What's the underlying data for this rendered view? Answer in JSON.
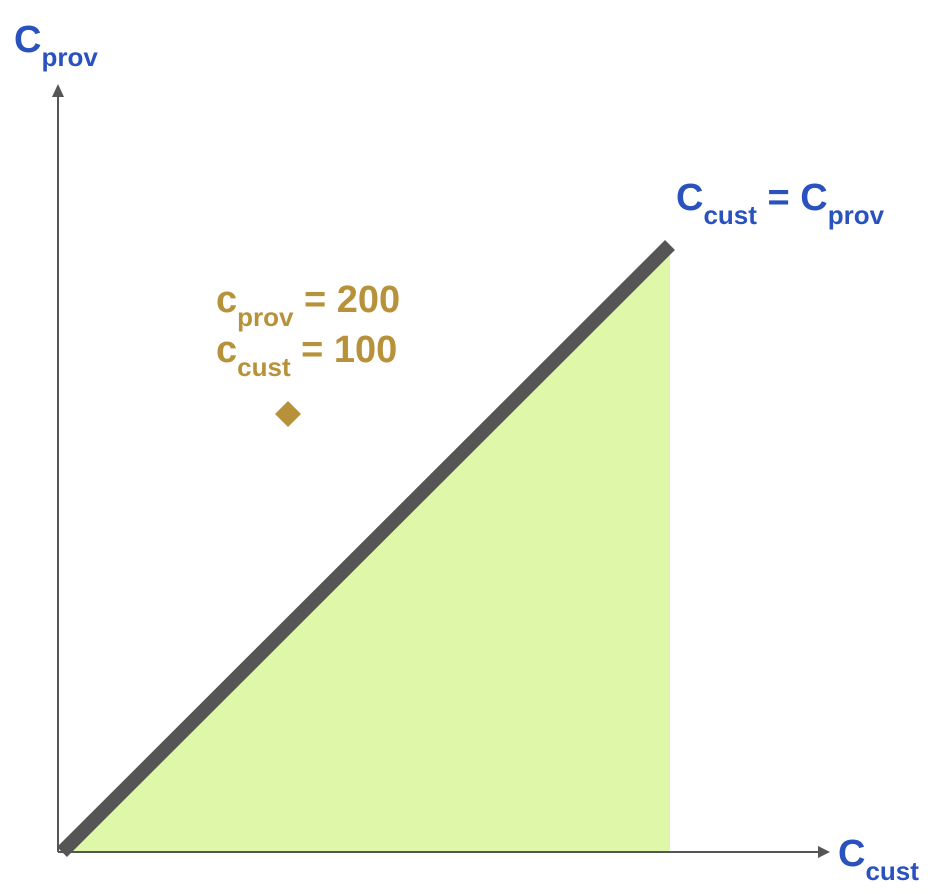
{
  "colors": {
    "axis": "#555555",
    "diagonal": "#555555",
    "region_fill": "#dff7a8",
    "axis_label": "#2a52be",
    "point": "#b8923a"
  },
  "axes": {
    "x_label": {
      "main": "C",
      "sub": "cust"
    },
    "y_label": {
      "main": "C",
      "sub": "prov"
    }
  },
  "diagonal_label": {
    "left_main": "C",
    "left_sub": "cust",
    "equals": " = ",
    "right_main": "C",
    "right_sub": "prov"
  },
  "point": {
    "marker": "diamond",
    "line1": {
      "main": "c",
      "sub": "prov",
      "value": " = 200"
    },
    "line2": {
      "main": "c",
      "sub": "cust",
      "value": " = 100"
    }
  }
}
